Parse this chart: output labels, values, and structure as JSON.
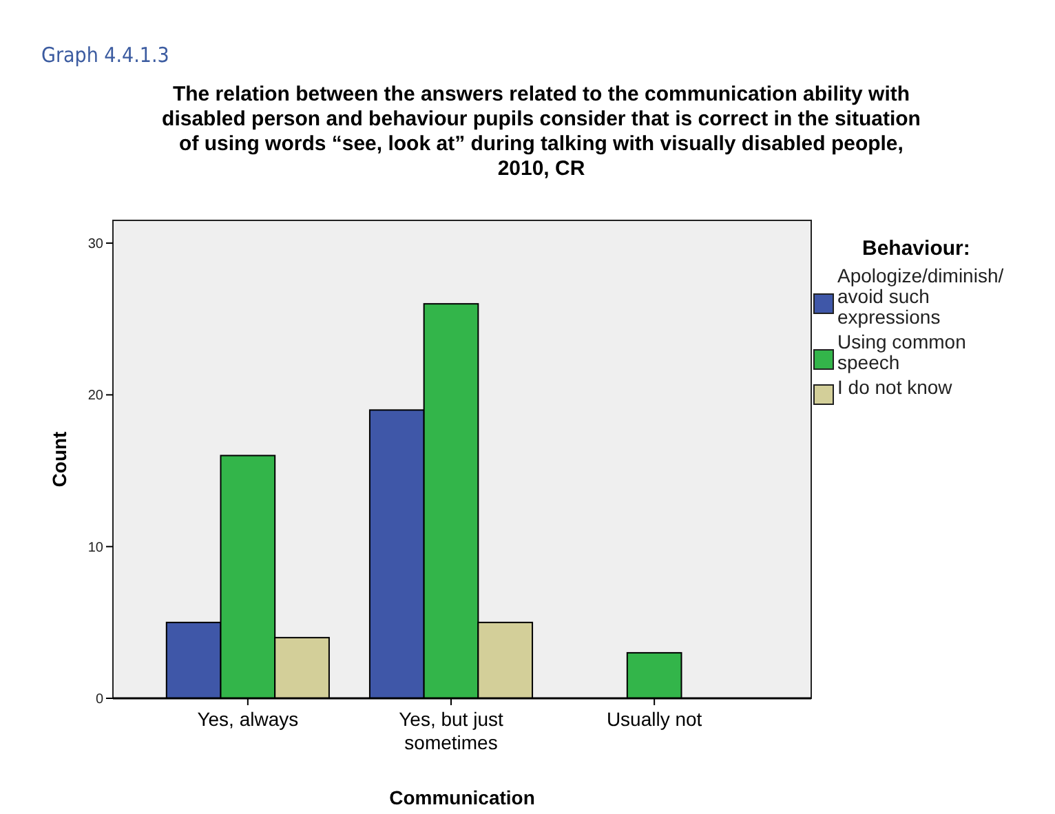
{
  "chart_data": {
    "type": "bar",
    "title": "The relation between the answers related to the communication ability with disabled person and behaviour pupils consider that is correct in the situation of using words “see, look at” during talking with visually disabled people, 2010, CR",
    "annotations": [
      "Graph 4.4.1.3"
    ],
    "xlabel": "Communication",
    "ylabel": "Count",
    "legend_title": "Behaviour:",
    "categories": [
      "Yes, always",
      "Yes, but just sometimes",
      "Usually not"
    ],
    "series": [
      {
        "name": "Apologize/diminish/ avoid such expressions",
        "color": "#3f57a8",
        "values": [
          5,
          19,
          null
        ]
      },
      {
        "name": "Using common speech",
        "color": "#33b54a",
        "values": [
          16,
          26,
          3
        ]
      },
      {
        "name": "I do not know",
        "color": "#d3cf99",
        "values": [
          4,
          5,
          null
        ]
      }
    ],
    "ylim": [
      0,
      31.5
    ],
    "yticks": [
      0,
      10,
      20,
      30
    ],
    "grid": false,
    "legend": "right"
  }
}
